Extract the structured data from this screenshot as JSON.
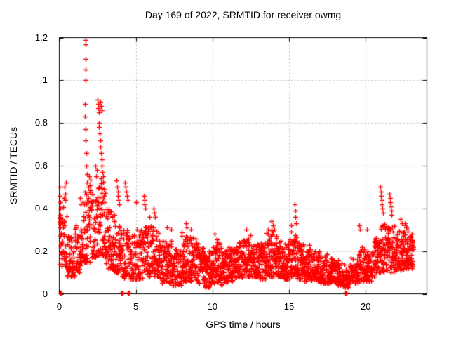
{
  "page": {
    "background": "#ffffff"
  },
  "chart_data": {
    "type": "scatter",
    "title": "Day 169 of 2022, SRMTID for receiver owmg",
    "xlabel": "GPS time / hours",
    "ylabel": "SRMTID / TECUs",
    "xlim": [
      0,
      24
    ],
    "ylim": [
      0,
      1.2
    ],
    "xticks": [
      0,
      5,
      10,
      15,
      20
    ],
    "xtick_labels": [
      "0",
      "5",
      "10",
      "15",
      "20"
    ],
    "yticks": [
      0,
      0.2,
      0.4,
      0.6,
      0.8,
      1,
      1.2
    ],
    "ytick_labels": [
      "0",
      "0.2",
      "0.4",
      "0.6",
      "0.8",
      "1",
      "1.2"
    ],
    "grid": true,
    "legend": false,
    "marker": "plus",
    "marker_color": "#ff0000",
    "grid_color": "#bdbdbd",
    "axis_color": "#000000",
    "seed": 169,
    "density_bins": [
      [
        0.0,
        0.5,
        40,
        0.13,
        0.42
      ],
      [
        0.5,
        1.0,
        40,
        0.08,
        0.28
      ],
      [
        1.0,
        1.5,
        40,
        0.1,
        0.33
      ],
      [
        1.5,
        2.0,
        42,
        0.15,
        0.48
      ],
      [
        2.0,
        2.5,
        42,
        0.17,
        0.52
      ],
      [
        2.5,
        3.0,
        42,
        0.18,
        0.55
      ],
      [
        3.0,
        3.5,
        40,
        0.12,
        0.4
      ],
      [
        3.5,
        4.0,
        40,
        0.1,
        0.34
      ],
      [
        4.0,
        4.5,
        40,
        0.07,
        0.3
      ],
      [
        4.5,
        5.0,
        40,
        0.07,
        0.28
      ],
      [
        5.0,
        5.5,
        42,
        0.07,
        0.3
      ],
      [
        5.5,
        6.0,
        44,
        0.08,
        0.33
      ],
      [
        6.0,
        6.5,
        46,
        0.08,
        0.31
      ],
      [
        6.5,
        7.0,
        46,
        0.05,
        0.27
      ],
      [
        7.0,
        7.5,
        48,
        0.04,
        0.27
      ],
      [
        7.5,
        8.0,
        48,
        0.04,
        0.22
      ],
      [
        8.0,
        8.5,
        48,
        0.06,
        0.3
      ],
      [
        8.5,
        9.0,
        48,
        0.06,
        0.28
      ],
      [
        9.0,
        9.5,
        48,
        0.05,
        0.22
      ],
      [
        9.5,
        10.0,
        48,
        0.03,
        0.2
      ],
      [
        10.0,
        10.5,
        48,
        0.05,
        0.26
      ],
      [
        10.5,
        11.0,
        48,
        0.04,
        0.22
      ],
      [
        11.0,
        11.5,
        48,
        0.06,
        0.22
      ],
      [
        11.5,
        12.0,
        48,
        0.07,
        0.24
      ],
      [
        12.0,
        12.5,
        48,
        0.08,
        0.28
      ],
      [
        12.5,
        13.0,
        48,
        0.08,
        0.24
      ],
      [
        13.0,
        13.5,
        48,
        0.07,
        0.24
      ],
      [
        13.5,
        14.0,
        48,
        0.08,
        0.31
      ],
      [
        14.0,
        14.5,
        48,
        0.08,
        0.27
      ],
      [
        14.5,
        15.0,
        48,
        0.07,
        0.24
      ],
      [
        15.0,
        15.5,
        48,
        0.08,
        0.29
      ],
      [
        15.5,
        16.0,
        48,
        0.07,
        0.24
      ],
      [
        16.0,
        16.5,
        46,
        0.06,
        0.21
      ],
      [
        16.5,
        17.0,
        46,
        0.06,
        0.2
      ],
      [
        17.0,
        17.5,
        46,
        0.05,
        0.19
      ],
      [
        17.5,
        18.0,
        46,
        0.05,
        0.17
      ],
      [
        18.0,
        18.5,
        44,
        0.04,
        0.15
      ],
      [
        18.5,
        19.0,
        44,
        0.03,
        0.14
      ],
      [
        19.0,
        19.5,
        44,
        0.05,
        0.17
      ],
      [
        19.5,
        20.0,
        44,
        0.06,
        0.22
      ],
      [
        20.0,
        20.5,
        44,
        0.06,
        0.2
      ],
      [
        20.5,
        21.0,
        46,
        0.08,
        0.26
      ],
      [
        21.0,
        21.5,
        46,
        0.1,
        0.33
      ],
      [
        21.5,
        22.0,
        46,
        0.1,
        0.33
      ],
      [
        22.0,
        22.5,
        46,
        0.11,
        0.3
      ],
      [
        22.5,
        23.1,
        56,
        0.12,
        0.3
      ]
    ],
    "points": [
      [
        0.06,
        0.005
      ],
      [
        0.1,
        0.005
      ],
      [
        4.07,
        0.005
      ],
      [
        4.1,
        0.005
      ],
      [
        4.13,
        0.005
      ],
      [
        4.48,
        0.005
      ],
      [
        4.52,
        0.005
      ],
      [
        4.55,
        0.005
      ],
      [
        18.66,
        0.005
      ],
      [
        18.7,
        0.005
      ],
      [
        18.74,
        0.005
      ],
      [
        0.03,
        0.5
      ],
      [
        0.04,
        0.46
      ],
      [
        0.05,
        0.43
      ],
      [
        0.06,
        0.4
      ],
      [
        0.05,
        0.37
      ],
      [
        0.07,
        0.34
      ],
      [
        0.08,
        0.31
      ],
      [
        0.09,
        0.27
      ],
      [
        0.1,
        0.24
      ],
      [
        0.3,
        0.45
      ],
      [
        0.35,
        0.5
      ],
      [
        0.4,
        0.47
      ],
      [
        0.45,
        0.52
      ],
      [
        0.38,
        0.44
      ],
      [
        1.7,
        1.19
      ],
      [
        1.71,
        1.17
      ],
      [
        1.72,
        1.1
      ],
      [
        1.73,
        1.05
      ],
      [
        1.74,
        1.0
      ],
      [
        1.68,
        0.89
      ],
      [
        1.69,
        0.83
      ],
      [
        1.71,
        0.77
      ],
      [
        1.73,
        0.72
      ],
      [
        1.75,
        0.66
      ],
      [
        1.77,
        0.6
      ],
      [
        1.79,
        0.56
      ],
      [
        1.81,
        0.52
      ],
      [
        1.66,
        0.48
      ],
      [
        1.9,
        0.5
      ],
      [
        1.95,
        0.55
      ],
      [
        1.35,
        0.45
      ],
      [
        1.4,
        0.42
      ],
      [
        2.5,
        0.91
      ],
      [
        2.53,
        0.89
      ],
      [
        2.56,
        0.87
      ],
      [
        2.6,
        0.85
      ],
      [
        2.7,
        0.9
      ],
      [
        2.73,
        0.88
      ],
      [
        2.76,
        0.86
      ],
      [
        2.57,
        0.8
      ],
      [
        2.6,
        0.78
      ],
      [
        2.63,
        0.75
      ],
      [
        2.66,
        0.72
      ],
      [
        2.69,
        0.69
      ],
      [
        2.72,
        0.66
      ],
      [
        2.75,
        0.63
      ],
      [
        2.78,
        0.6
      ],
      [
        2.81,
        0.57
      ],
      [
        2.84,
        0.55
      ],
      [
        2.87,
        0.52
      ],
      [
        2.9,
        0.49
      ],
      [
        2.93,
        0.46
      ],
      [
        2.96,
        0.43
      ],
      [
        2.45,
        0.58
      ],
      [
        2.4,
        0.55
      ],
      [
        2.35,
        0.6
      ],
      [
        3.75,
        0.53
      ],
      [
        3.78,
        0.5
      ],
      [
        3.81,
        0.48
      ],
      [
        3.84,
        0.46
      ],
      [
        3.87,
        0.44
      ],
      [
        3.9,
        0.42
      ],
      [
        4.28,
        0.52
      ],
      [
        4.32,
        0.5
      ],
      [
        4.36,
        0.48
      ],
      [
        4.41,
        0.46
      ],
      [
        4.46,
        0.44
      ],
      [
        5.02,
        0.43
      ],
      [
        5.52,
        0.46
      ],
      [
        5.55,
        0.44
      ],
      [
        5.58,
        0.42
      ],
      [
        5.61,
        0.4
      ],
      [
        5.9,
        0.36
      ],
      [
        6.18,
        0.4
      ],
      [
        6.22,
        0.38
      ],
      [
        6.26,
        0.36
      ],
      [
        7.05,
        0.31
      ],
      [
        7.3,
        0.3
      ],
      [
        8.28,
        0.33
      ],
      [
        8.33,
        0.31
      ],
      [
        8.6,
        0.3
      ],
      [
        10.15,
        0.28
      ],
      [
        12.2,
        0.3
      ],
      [
        13.85,
        0.34
      ],
      [
        13.95,
        0.32
      ],
      [
        14.05,
        0.3
      ],
      [
        15.36,
        0.42
      ],
      [
        15.39,
        0.39
      ],
      [
        15.42,
        0.36
      ],
      [
        15.45,
        0.33
      ],
      [
        19.58,
        0.32
      ],
      [
        19.63,
        0.3
      ],
      [
        20.1,
        0.3
      ],
      [
        20.97,
        0.5
      ],
      [
        21.0,
        0.48
      ],
      [
        21.02,
        0.46
      ],
      [
        21.04,
        0.44
      ],
      [
        21.06,
        0.42
      ],
      [
        21.09,
        0.4
      ],
      [
        21.12,
        0.38
      ],
      [
        21.55,
        0.47
      ],
      [
        21.58,
        0.45
      ],
      [
        21.61,
        0.43
      ],
      [
        21.64,
        0.41
      ],
      [
        21.67,
        0.39
      ],
      [
        21.7,
        0.37
      ],
      [
        22.3,
        0.35
      ],
      [
        22.36,
        0.33
      ],
      [
        22.55,
        0.33
      ],
      [
        22.6,
        0.32
      ],
      [
        22.66,
        0.31
      ],
      [
        22.75,
        0.3
      ],
      [
        23.0,
        0.28
      ],
      [
        23.05,
        0.25
      ],
      [
        23.1,
        0.22
      ]
    ]
  }
}
